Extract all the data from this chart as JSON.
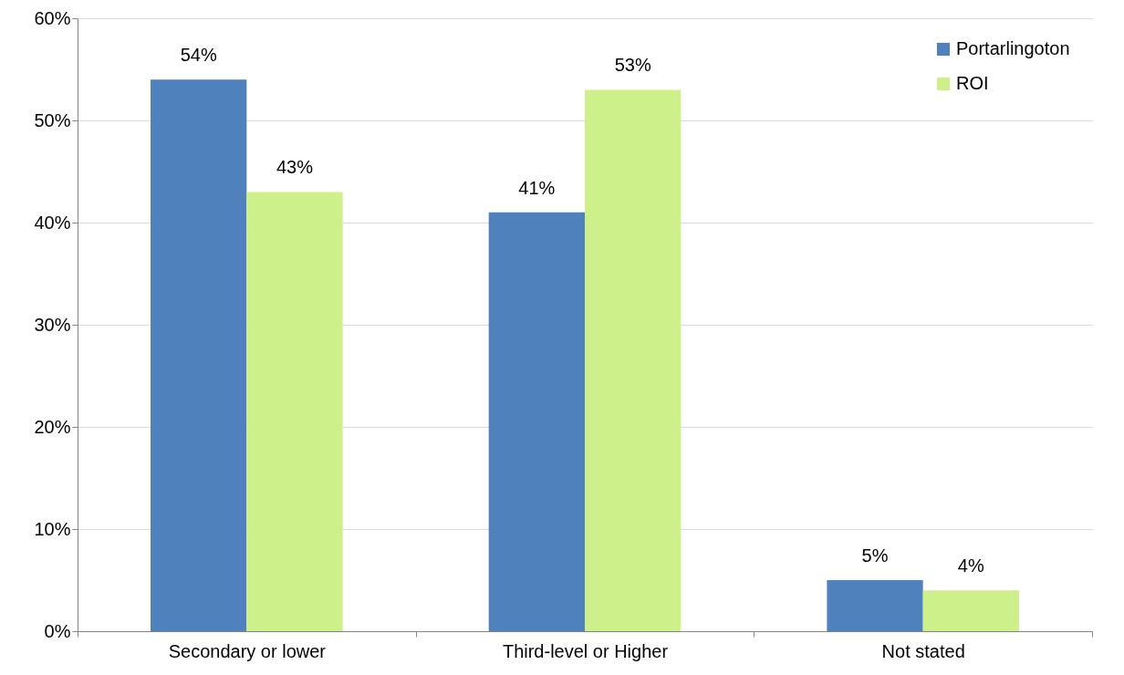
{
  "chart_data": {
    "type": "bar",
    "categories": [
      "Secondary or lower",
      "Third-level or Higher",
      "Not stated"
    ],
    "series": [
      {
        "name": "Portarlingoton",
        "color": "#4f81bd",
        "values": [
          54,
          41,
          5
        ],
        "value_labels": [
          "54%",
          "41%",
          "5%"
        ]
      },
      {
        "name": "ROI",
        "color": "#cdf08a",
        "values": [
          43,
          53,
          4
        ],
        "value_labels": [
          "43%",
          "53%",
          "4%"
        ]
      }
    ],
    "ylim": [
      0,
      60
    ],
    "yticks": [
      {
        "value": 0,
        "label": "0%"
      },
      {
        "value": 10,
        "label": "10%"
      },
      {
        "value": 20,
        "label": "20%"
      },
      {
        "value": 30,
        "label": "30%"
      },
      {
        "value": 40,
        "label": "40%"
      },
      {
        "value": 50,
        "label": "50%"
      },
      {
        "value": 60,
        "label": "60%"
      }
    ],
    "grid": "y",
    "legend": "top right"
  }
}
